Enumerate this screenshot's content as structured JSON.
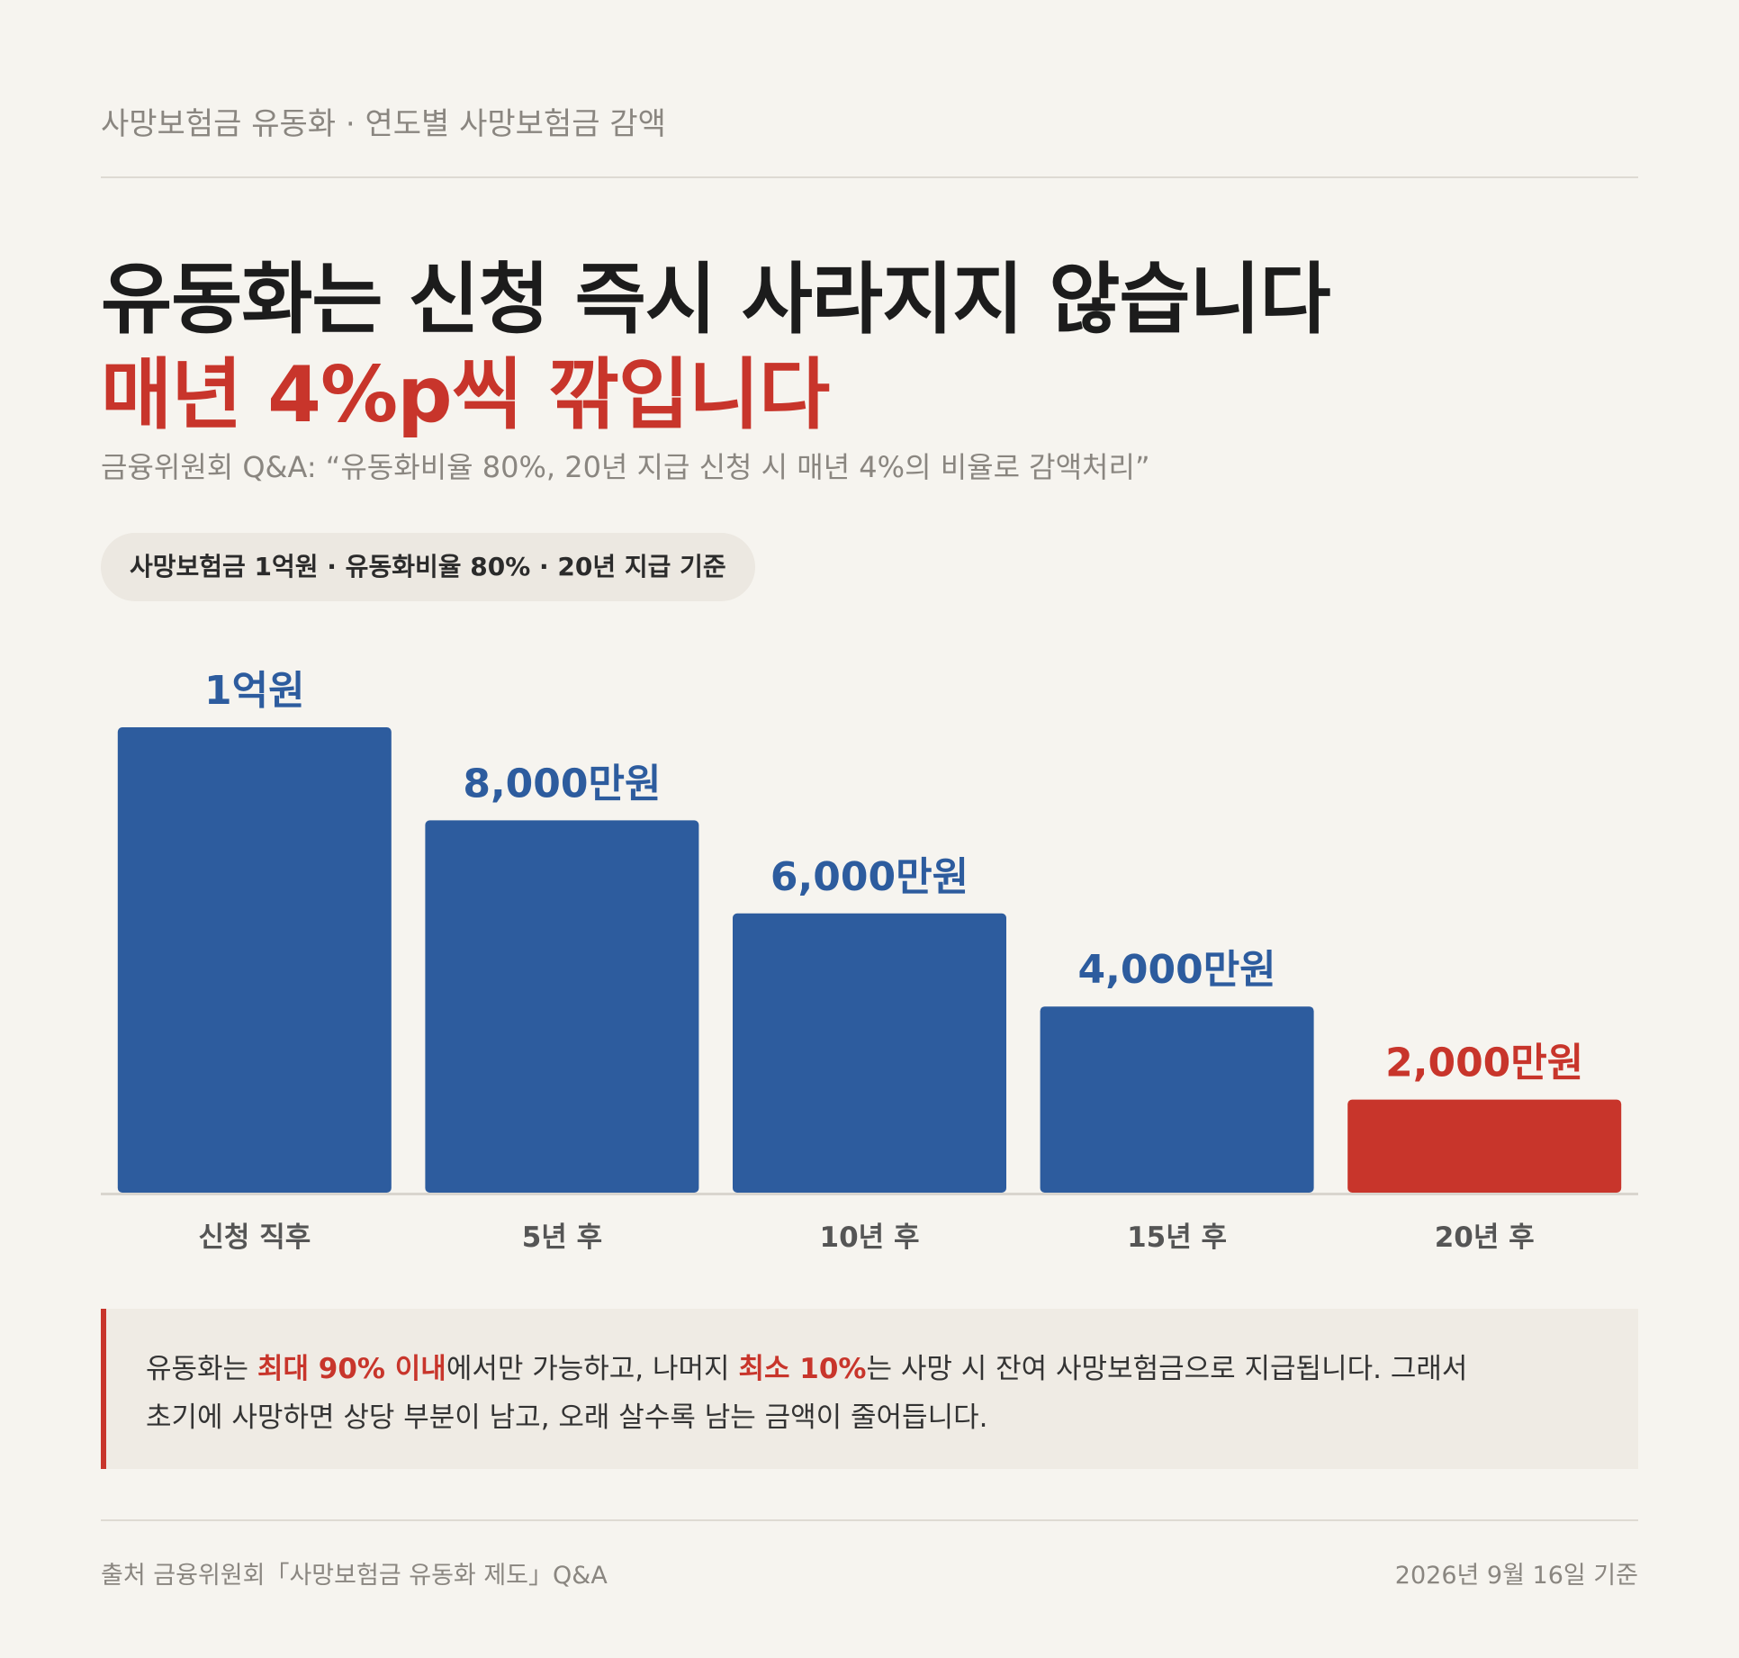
{
  "kicker": "사망보험금 유동화 · 연도별 사망보험금 감액",
  "headline": {
    "line1": "유동화는 신청 즉시 사라지지 않습니다",
    "line2": "매년 4%p씩 깎입니다"
  },
  "quote": "금융위원회 Q&A: “유동화비율 80%, 20년 지급 신청 시 매년 4%의 비율로 감액처리”",
  "basis_pill": "사망보험금 1억원 · 유동화비율 80% · 20년 지급 기준",
  "chart_data": {
    "type": "bar",
    "categories": [
      "신청 직후",
      "5년 후",
      "10년 후",
      "15년 후",
      "20년 후"
    ],
    "values": [
      10000,
      8000,
      6000,
      4000,
      2000
    ],
    "unit": "만원",
    "data_labels": [
      "1억원",
      "8,000만원",
      "6,000만원",
      "4,000만원",
      "2,000만원"
    ],
    "ylim": [
      0,
      10000
    ],
    "grid": false,
    "highlight_index": 4,
    "colors": {
      "bar": "#2d5c9e",
      "highlight": "#c8352b",
      "axis": "#d9d5ce",
      "category_text": "#555555"
    }
  },
  "note": {
    "seg1": "유동화는 ",
    "hl1": "최대 90% 이내",
    "seg2": "에서만 가능하고, 나머지 ",
    "hl2": "최소 10%",
    "seg3": "는 사망 시 잔여 사망보험금으로 지급됩니다. 그래서",
    "line2": "초기에 사망하면 상당 부분이 남고, 오래 살수록 남는 금액이 줄어듭니다."
  },
  "footer": {
    "source": "출처 금융위원회「사망보험금 유동화 제도」Q&A",
    "date": "2026년 9월 16일 기준"
  },
  "colors": {
    "background": "#f6f4ef",
    "accent": "#c8352b",
    "primary": "#2d5c9e",
    "muted": "#8a8680"
  }
}
